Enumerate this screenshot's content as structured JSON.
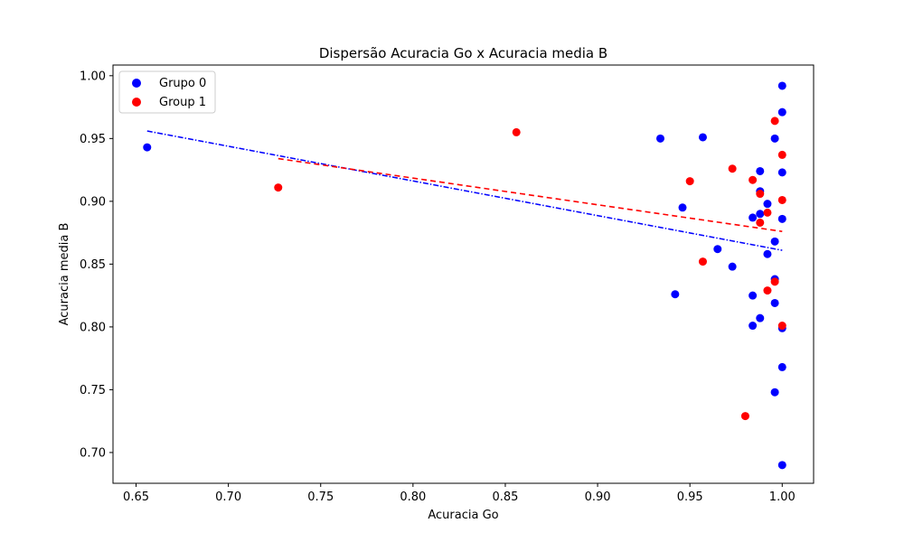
{
  "chart_data": {
    "type": "scatter",
    "title": "Dispersão Acuracia Go x Acuracia media B",
    "xlabel": "Acuracia Go",
    "ylabel": "Acuracia media B",
    "xlim": [
      0.6375,
      1.017
    ],
    "ylim": [
      0.6755,
      1.0085
    ],
    "xticks": [
      "0.65",
      "0.70",
      "0.75",
      "0.80",
      "0.85",
      "0.90",
      "0.95",
      "1.00"
    ],
    "xtick_values": [
      0.65,
      0.7,
      0.75,
      0.8,
      0.85,
      0.9,
      0.95,
      1.0
    ],
    "yticks": [
      "0.70",
      "0.75",
      "0.80",
      "0.85",
      "0.90",
      "0.95",
      "1.00"
    ],
    "ytick_values": [
      0.7,
      0.75,
      0.8,
      0.85,
      0.9,
      0.95,
      1.0
    ],
    "grid": false,
    "legend": "top-left",
    "series": [
      {
        "name": "Grupo 0",
        "color": "#0000ff",
        "points": [
          [
            0.656,
            0.943
          ],
          [
            0.934,
            0.95
          ],
          [
            0.942,
            0.826
          ],
          [
            0.946,
            0.895
          ],
          [
            0.957,
            0.951
          ],
          [
            0.965,
            0.862
          ],
          [
            0.973,
            0.848
          ],
          [
            0.984,
            0.887
          ],
          [
            0.984,
            0.825
          ],
          [
            0.984,
            0.801
          ],
          [
            0.988,
            0.924
          ],
          [
            0.988,
            0.908
          ],
          [
            0.988,
            0.89
          ],
          [
            0.988,
            0.807
          ],
          [
            0.992,
            0.898
          ],
          [
            0.992,
            0.858
          ],
          [
            0.996,
            0.95
          ],
          [
            0.996,
            0.868
          ],
          [
            0.996,
            0.838
          ],
          [
            0.996,
            0.819
          ],
          [
            0.996,
            0.748
          ],
          [
            1.0,
            0.992
          ],
          [
            1.0,
            0.971
          ],
          [
            1.0,
            0.923
          ],
          [
            1.0,
            0.886
          ],
          [
            1.0,
            0.799
          ],
          [
            1.0,
            0.768
          ],
          [
            1.0,
            0.69
          ]
        ],
        "trendline": {
          "x": [
            0.656,
            1.0
          ],
          "y": [
            0.956,
            0.861
          ],
          "style": "dashdot"
        }
      },
      {
        "name": "Group 1",
        "color": "#ff0000",
        "points": [
          [
            0.727,
            0.911
          ],
          [
            0.856,
            0.955
          ],
          [
            0.95,
            0.916
          ],
          [
            0.957,
            0.852
          ],
          [
            0.973,
            0.926
          ],
          [
            0.98,
            0.729
          ],
          [
            0.984,
            0.917
          ],
          [
            0.988,
            0.906
          ],
          [
            0.988,
            0.883
          ],
          [
            0.992,
            0.891
          ],
          [
            0.992,
            0.829
          ],
          [
            0.996,
            0.964
          ],
          [
            0.996,
            0.836
          ],
          [
            1.0,
            0.937
          ],
          [
            1.0,
            0.901
          ],
          [
            1.0,
            0.801
          ]
        ],
        "trendline": {
          "x": [
            0.727,
            1.0
          ],
          "y": [
            0.934,
            0.876
          ],
          "style": "dashed"
        }
      }
    ]
  }
}
